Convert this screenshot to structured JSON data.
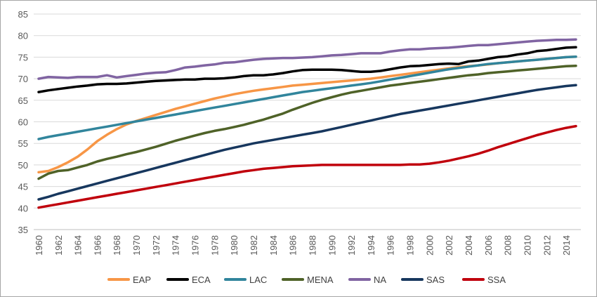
{
  "chart_data": {
    "type": "line",
    "title": "",
    "xlabel": "",
    "ylabel": "",
    "ylim": [
      35,
      85
    ],
    "yticks": [
      35,
      40,
      45,
      50,
      55,
      60,
      65,
      70,
      75,
      80,
      85
    ],
    "xlim": [
      1960,
      2015
    ],
    "xtick_labels": [
      "1960",
      "1962",
      "1964",
      "1966",
      "1968",
      "1970",
      "1972",
      "1974",
      "1976",
      "1978",
      "1980",
      "1982",
      "1984",
      "1986",
      "1988",
      "1990",
      "1992",
      "1994",
      "1996",
      "1998",
      "2000",
      "2002",
      "2004",
      "2006",
      "2008",
      "2010",
      "2012",
      "2014"
    ],
    "grid": "horizontal",
    "legend_position": "bottom",
    "x": [
      1960,
      1961,
      1962,
      1963,
      1964,
      1965,
      1966,
      1967,
      1968,
      1969,
      1970,
      1971,
      1972,
      1973,
      1974,
      1975,
      1976,
      1977,
      1978,
      1979,
      1980,
      1981,
      1982,
      1983,
      1984,
      1985,
      1986,
      1987,
      1988,
      1989,
      1990,
      1991,
      1992,
      1993,
      1994,
      1995,
      1996,
      1997,
      1998,
      1999,
      2000,
      2001,
      2002,
      2003,
      2004,
      2005,
      2006,
      2007,
      2008,
      2009,
      2010,
      2011,
      2012,
      2013,
      2014,
      2015
    ],
    "series": [
      {
        "name": "EAP",
        "color": "#f79646",
        "values": [
          48.3,
          48.6,
          49.5,
          50.6,
          51.9,
          53.6,
          55.5,
          57.0,
          58.3,
          59.4,
          60.2,
          60.9,
          61.6,
          62.3,
          63.0,
          63.6,
          64.2,
          64.8,
          65.4,
          65.9,
          66.4,
          66.8,
          67.2,
          67.5,
          67.8,
          68.1,
          68.4,
          68.6,
          68.8,
          69.0,
          69.2,
          69.4,
          69.6,
          69.8,
          70.0,
          70.3,
          70.6,
          70.9,
          71.2,
          71.5,
          71.8,
          72.1,
          72.4,
          72.7,
          72.9,
          73.1,
          73.3,
          73.6,
          73.8,
          74.0,
          74.2,
          74.4,
          74.6,
          74.8,
          75.0,
          75.1
        ]
      },
      {
        "name": "ECA",
        "color": "#000000",
        "values": [
          66.9,
          67.3,
          67.6,
          67.9,
          68.2,
          68.4,
          68.7,
          68.8,
          68.8,
          68.9,
          69.1,
          69.3,
          69.5,
          69.6,
          69.7,
          69.8,
          69.8,
          70.0,
          70.0,
          70.1,
          70.3,
          70.6,
          70.8,
          70.8,
          71.0,
          71.3,
          71.7,
          72.0,
          72.1,
          72.1,
          72.1,
          72.0,
          71.8,
          71.6,
          71.6,
          71.8,
          72.2,
          72.6,
          72.9,
          73.0,
          73.2,
          73.4,
          73.5,
          73.4,
          74.0,
          74.2,
          74.6,
          75.0,
          75.2,
          75.6,
          75.9,
          76.4,
          76.6,
          76.9,
          77.2,
          77.3
        ]
      },
      {
        "name": "LAC",
        "color": "#31859c",
        "values": [
          56.0,
          56.5,
          56.9,
          57.3,
          57.7,
          58.1,
          58.5,
          58.9,
          59.3,
          59.7,
          60.1,
          60.5,
          60.9,
          61.3,
          61.7,
          62.1,
          62.5,
          62.9,
          63.3,
          63.7,
          64.1,
          64.5,
          64.9,
          65.3,
          65.7,
          66.1,
          66.5,
          66.9,
          67.2,
          67.5,
          67.8,
          68.1,
          68.4,
          68.7,
          69.0,
          69.4,
          69.8,
          70.2,
          70.6,
          71.0,
          71.4,
          71.8,
          72.2,
          72.5,
          72.8,
          73.1,
          73.4,
          73.6,
          73.8,
          74.0,
          74.2,
          74.4,
          74.6,
          74.8,
          75.0,
          75.1
        ]
      },
      {
        "name": "MENA",
        "color": "#4f6228",
        "values": [
          46.8,
          48.0,
          48.6,
          48.8,
          49.4,
          50.0,
          50.8,
          51.4,
          51.9,
          52.5,
          53.0,
          53.6,
          54.2,
          54.9,
          55.6,
          56.2,
          56.8,
          57.4,
          57.9,
          58.3,
          58.8,
          59.3,
          59.9,
          60.5,
          61.2,
          61.9,
          62.8,
          63.6,
          64.4,
          65.1,
          65.7,
          66.3,
          66.8,
          67.2,
          67.6,
          68.0,
          68.4,
          68.7,
          69.0,
          69.3,
          69.6,
          69.9,
          70.2,
          70.5,
          70.8,
          71.0,
          71.3,
          71.5,
          71.7,
          71.9,
          72.1,
          72.3,
          72.5,
          72.7,
          72.9,
          73.0
        ]
      },
      {
        "name": "NA",
        "color": "#8064a2",
        "values": [
          70.0,
          70.4,
          70.3,
          70.2,
          70.4,
          70.4,
          70.4,
          70.8,
          70.3,
          70.6,
          70.9,
          71.2,
          71.4,
          71.5,
          72.0,
          72.6,
          72.8,
          73.1,
          73.3,
          73.7,
          73.8,
          74.1,
          74.4,
          74.6,
          74.7,
          74.8,
          74.8,
          74.9,
          75.0,
          75.2,
          75.4,
          75.5,
          75.7,
          75.9,
          75.9,
          75.9,
          76.3,
          76.6,
          76.8,
          76.8,
          77.0,
          77.1,
          77.2,
          77.4,
          77.6,
          77.8,
          77.8,
          78.0,
          78.2,
          78.4,
          78.6,
          78.8,
          78.9,
          79.0,
          79.0,
          79.1
        ]
      },
      {
        "name": "SAS",
        "color": "#17375e",
        "values": [
          42.0,
          42.6,
          43.3,
          43.9,
          44.5,
          45.1,
          45.7,
          46.3,
          46.9,
          47.5,
          48.1,
          48.7,
          49.3,
          49.9,
          50.5,
          51.1,
          51.7,
          52.3,
          52.9,
          53.5,
          54.0,
          54.5,
          55.0,
          55.4,
          55.8,
          56.2,
          56.6,
          57.0,
          57.4,
          57.8,
          58.3,
          58.8,
          59.3,
          59.8,
          60.3,
          60.8,
          61.3,
          61.8,
          62.2,
          62.6,
          63.0,
          63.4,
          63.8,
          64.2,
          64.6,
          65.0,
          65.4,
          65.8,
          66.2,
          66.6,
          67.0,
          67.4,
          67.7,
          68.0,
          68.3,
          68.5
        ]
      },
      {
        "name": "SSA",
        "color": "#c0000c",
        "values": [
          40.1,
          40.5,
          40.9,
          41.3,
          41.7,
          42.1,
          42.5,
          42.9,
          43.3,
          43.7,
          44.1,
          44.5,
          44.9,
          45.3,
          45.7,
          46.1,
          46.5,
          46.9,
          47.3,
          47.7,
          48.1,
          48.5,
          48.8,
          49.1,
          49.3,
          49.5,
          49.7,
          49.8,
          49.9,
          50.0,
          50.0,
          50.0,
          50.0,
          50.0,
          50.0,
          50.0,
          50.0,
          50.0,
          50.1,
          50.1,
          50.3,
          50.6,
          51.0,
          51.5,
          52.0,
          52.6,
          53.3,
          54.1,
          54.8,
          55.5,
          56.2,
          56.9,
          57.5,
          58.1,
          58.6,
          59.0
        ]
      }
    ]
  }
}
